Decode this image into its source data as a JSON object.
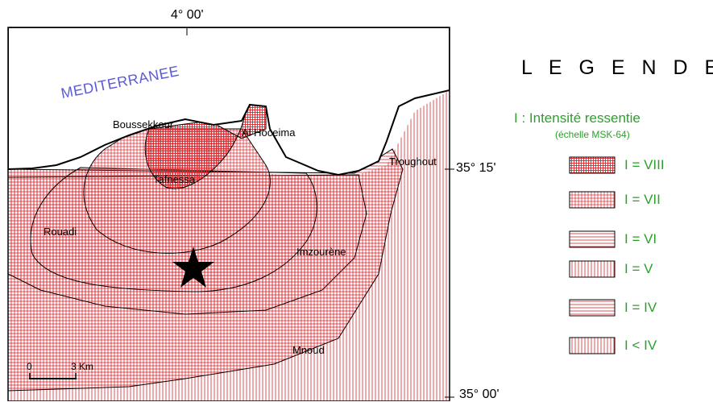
{
  "map": {
    "sea_label": "MEDITERRANEE",
    "longitude_label": "4° 00'",
    "latitude_labels": [
      "35° 15'",
      "35° 00'"
    ],
    "places": {
      "boussekkour": "Boussekkour",
      "al_hoceima": "Al Hoceima",
      "tafnessa": "Tafnessa",
      "troughout": "Troughout",
      "rouadi": "Rouadi",
      "imzourene": "Imzourène",
      "mnoud": "Mnoud"
    },
    "scale": {
      "start": "0",
      "end": "3 Km"
    },
    "epicenter_icon": "star-icon"
  },
  "legend": {
    "title": "L E G E N D E",
    "subtitle": "I : Intensité ressentie",
    "subtitle_note": "(échelle MSK-64)",
    "items": [
      {
        "label": "I =  VIII",
        "pattern": "fine-grid"
      },
      {
        "label": "I =  VII",
        "pattern": "grid"
      },
      {
        "label": "I =  VI",
        "pattern": "horizontal-lines"
      },
      {
        "label": "I =  V",
        "pattern": "vertical-lines"
      },
      {
        "label": "I =  IV",
        "pattern": "horizontal-lines"
      },
      {
        "label": "I < IV",
        "pattern": "vertical-lines"
      }
    ]
  },
  "colors": {
    "hatch": "#e0232a",
    "sea_label": "#5b5bd6",
    "legend_text": "#2aa12a",
    "outline": "#000000"
  }
}
